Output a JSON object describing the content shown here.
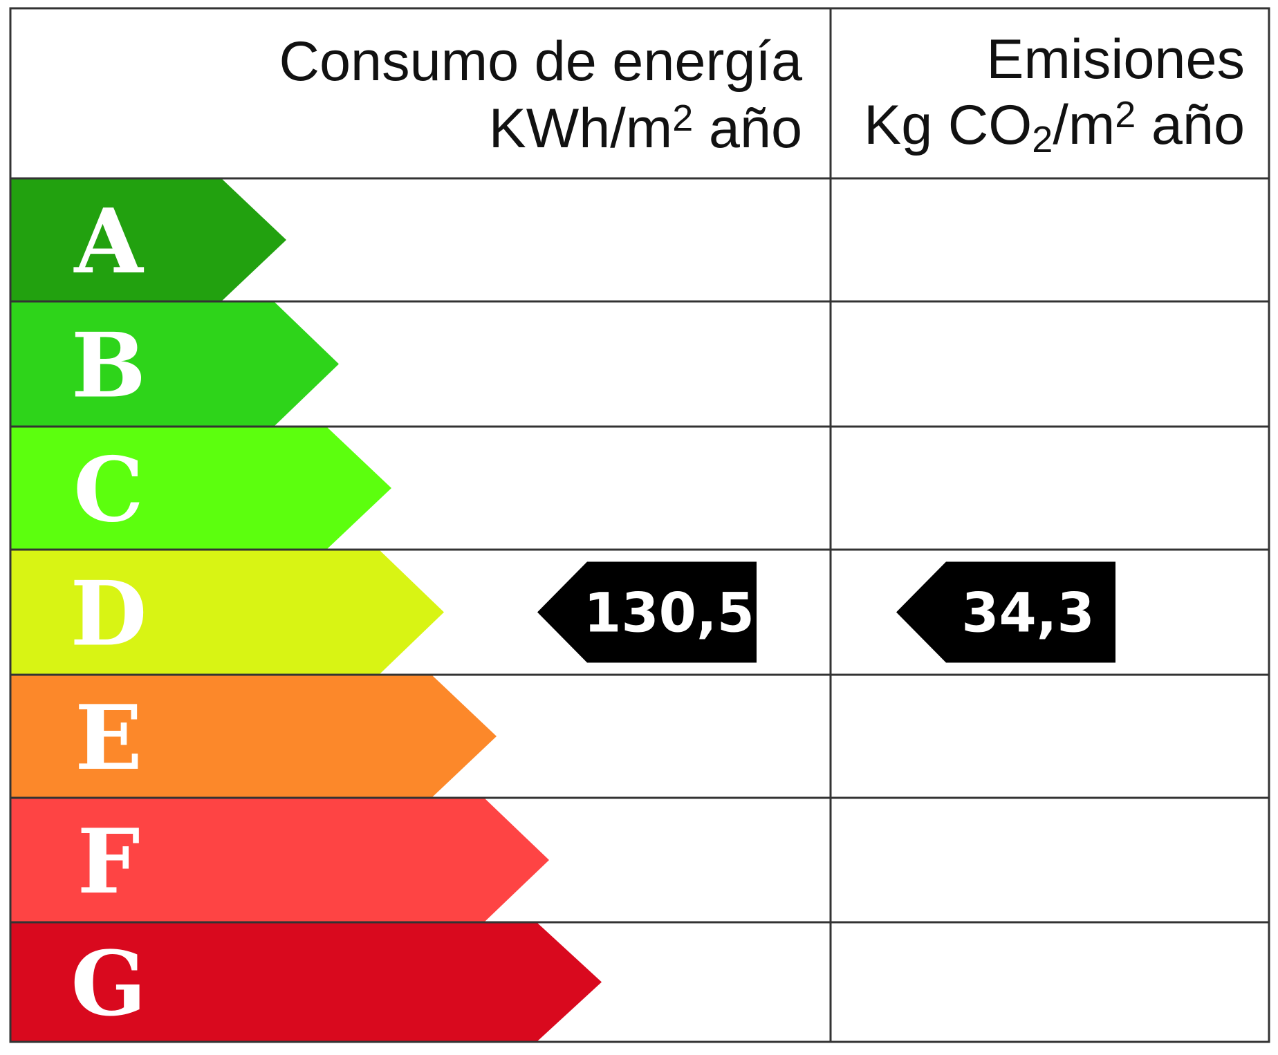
{
  "header": {
    "energy": {
      "title": "Consumo de energía",
      "unit_main": "KWh/m",
      "unit_sup": "2",
      "unit_tail": " año"
    },
    "emissions": {
      "title": "Emisiones",
      "unit_main": "Kg CO",
      "unit_sub": "2",
      "unit_mid": "/m",
      "unit_sup": "2",
      "unit_tail": " año"
    }
  },
  "classes": [
    {
      "letter": "A",
      "color": "#22a10f"
    },
    {
      "letter": "B",
      "color": "#2ed41a"
    },
    {
      "letter": "C",
      "color": "#5cff0e"
    },
    {
      "letter": "D",
      "color": "#d8f414"
    },
    {
      "letter": "E",
      "color": "#fc882a"
    },
    {
      "letter": "F",
      "color": "#fe4444"
    },
    {
      "letter": "G",
      "color": "#d9091e"
    }
  ],
  "energy_rating": {
    "class": "D",
    "value": "130,5"
  },
  "emissions_rating": {
    "class": "D",
    "value": "34,3"
  },
  "colors": {
    "border": "#333333",
    "marker": "#000000"
  }
}
